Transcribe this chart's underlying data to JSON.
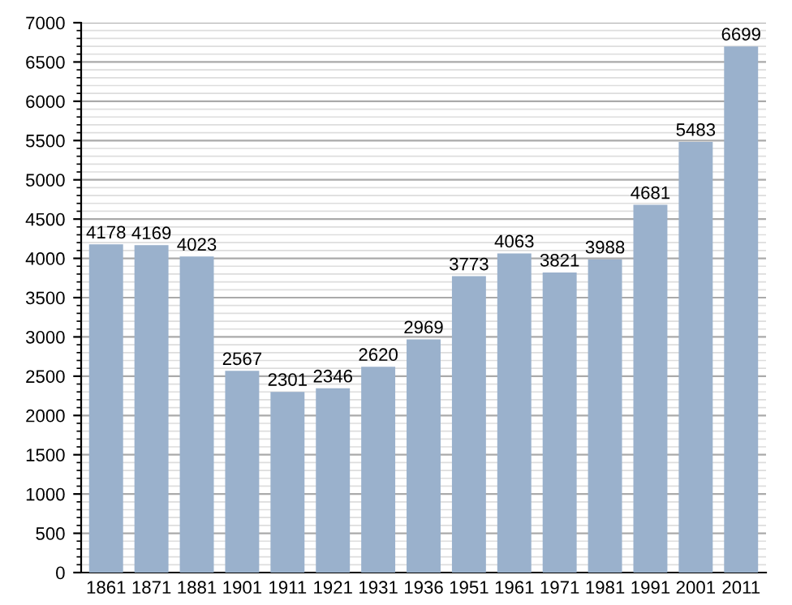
{
  "chart_data": {
    "type": "bar",
    "categories": [
      "1861",
      "1871",
      "1881",
      "1901",
      "1911",
      "1921",
      "1931",
      "1936",
      "1951",
      "1961",
      "1971",
      "1981",
      "1991",
      "2001",
      "2011"
    ],
    "values": [
      4178,
      4169,
      4023,
      2567,
      2301,
      2346,
      2620,
      2969,
      3773,
      4063,
      3821,
      3988,
      4681,
      5483,
      6699
    ],
    "color": "#9ab1cc",
    "ylim": [
      0,
      7000
    ],
    "yticks": [
      0,
      500,
      1000,
      1500,
      2000,
      2500,
      3000,
      3500,
      4000,
      4500,
      5000,
      5500,
      6000,
      6500,
      7000
    ],
    "grid": "y",
    "data_labels": true
  }
}
